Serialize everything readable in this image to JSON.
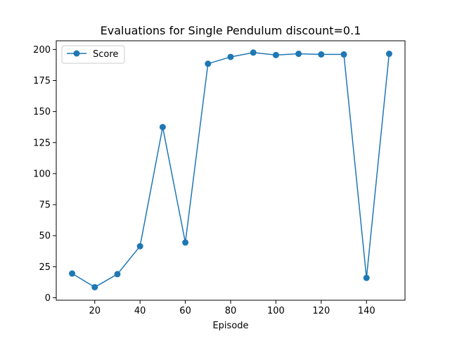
{
  "chart_data": {
    "type": "line",
    "title": "Evaluations for Single Pendulum discount=0.1",
    "xlabel": "Episode",
    "ylabel": "",
    "xlim": [
      3.0,
      157.0
    ],
    "ylim": [
      -2.0,
      207.0
    ],
    "xticks": [
      20,
      40,
      60,
      80,
      100,
      120,
      140
    ],
    "yticks": [
      0,
      25,
      50,
      75,
      100,
      125,
      150,
      175,
      200
    ],
    "grid": false,
    "legend_position": "upper-left",
    "series": [
      {
        "name": "Score",
        "color": "#1f77b4",
        "marker": "circle",
        "x": [
          10,
          20,
          30,
          40,
          50,
          60,
          70,
          80,
          90,
          100,
          110,
          120,
          130,
          140,
          150
        ],
        "y": [
          19.5,
          8.5,
          19,
          41.5,
          137.5,
          44.5,
          188.5,
          194,
          197.5,
          195.5,
          196.5,
          196,
          196,
          16,
          196.5
        ]
      }
    ]
  }
}
